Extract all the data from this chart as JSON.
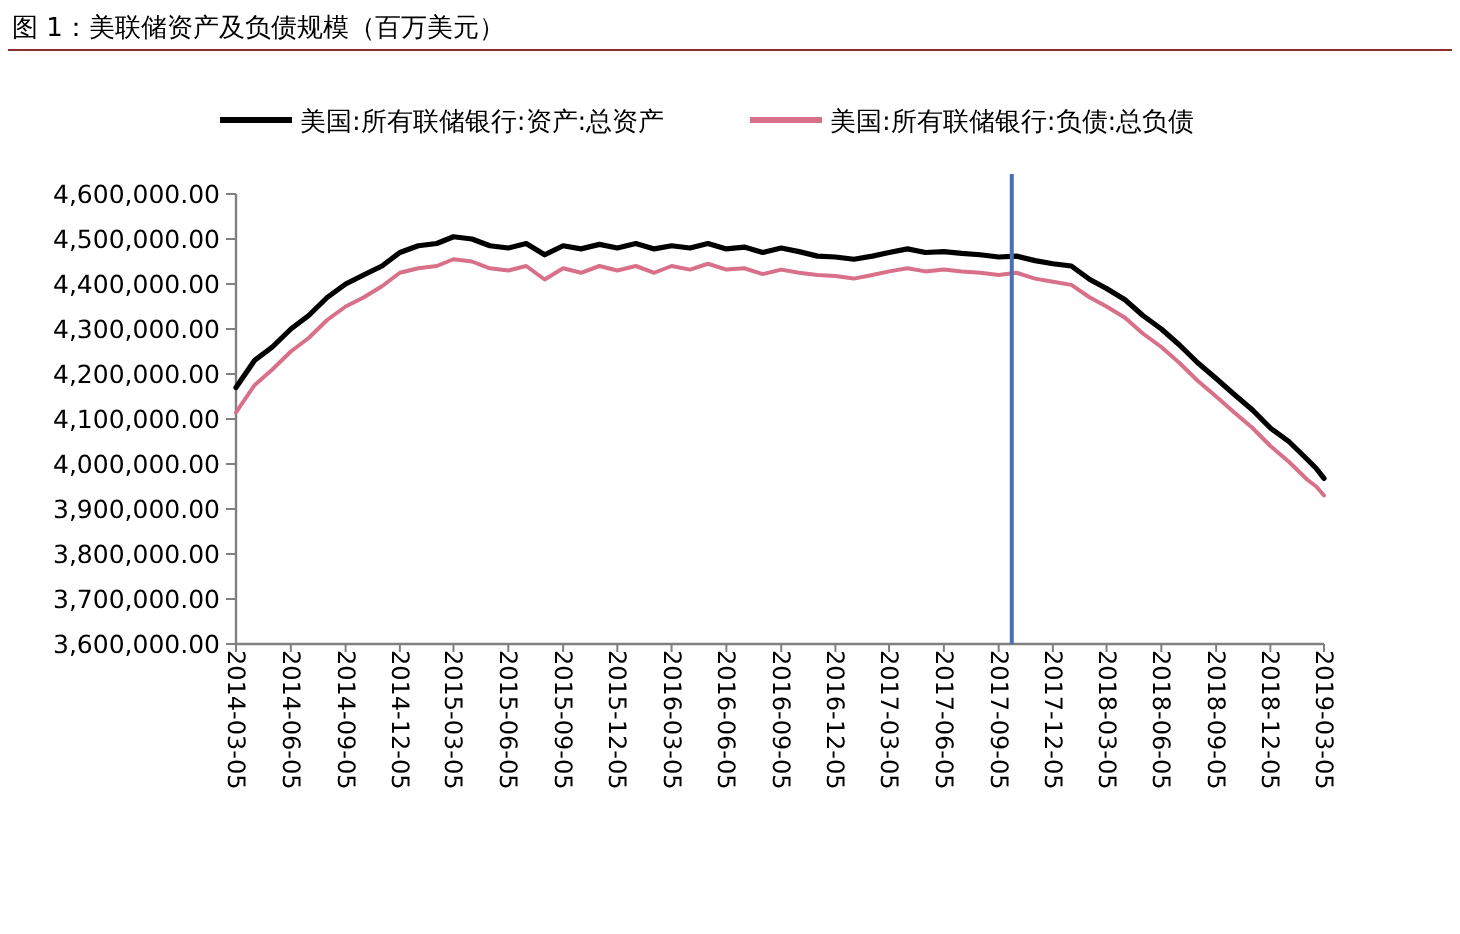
{
  "chart_data": {
    "type": "line",
    "title": "图 1：美联储资产及负债规模（百万美元）",
    "legend": "top",
    "marker": "none",
    "line_style": "solid",
    "grid": false,
    "x": [
      "2014-03-05",
      "2014-04-05",
      "2014-05-05",
      "2014-06-05",
      "2014-07-05",
      "2014-08-05",
      "2014-09-05",
      "2014-10-05",
      "2014-11-05",
      "2014-12-05",
      "2015-01-05",
      "2015-02-05",
      "2015-03-05",
      "2015-04-05",
      "2015-05-05",
      "2015-06-05",
      "2015-07-05",
      "2015-08-05",
      "2015-09-05",
      "2015-10-05",
      "2015-11-05",
      "2015-12-05",
      "2016-01-05",
      "2016-02-05",
      "2016-03-05",
      "2016-04-05",
      "2016-05-05",
      "2016-06-05",
      "2016-07-05",
      "2016-08-05",
      "2016-09-05",
      "2016-10-05",
      "2016-11-05",
      "2016-12-05",
      "2017-01-05",
      "2017-02-05",
      "2017-03-05",
      "2017-04-05",
      "2017-05-05",
      "2017-06-05",
      "2017-07-05",
      "2017-08-05",
      "2017-09-05",
      "2017-10-05",
      "2017-11-05",
      "2017-12-05",
      "2018-01-05",
      "2018-02-05",
      "2018-03-05",
      "2018-04-05",
      "2018-05-05",
      "2018-06-05",
      "2018-07-05",
      "2018-08-05",
      "2018-09-05",
      "2018-10-05",
      "2018-11-05",
      "2018-12-05",
      "2019-01-05",
      "2019-02-05",
      "2019-02-20",
      "2019-03-05"
    ],
    "series": [
      {
        "name": "美国:所有联储银行:资产:总资产",
        "color": "#000000",
        "values": [
          4170000,
          4230000,
          4260000,
          4300000,
          4330000,
          4370000,
          4400000,
          4420000,
          4440000,
          4470000,
          4485000,
          4490000,
          4505000,
          4500000,
          4485000,
          4480000,
          4490000,
          4465000,
          4485000,
          4478000,
          4488000,
          4480000,
          4490000,
          4478000,
          4485000,
          4480000,
          4490000,
          4478000,
          4482000,
          4470000,
          4480000,
          4472000,
          4462000,
          4460000,
          4455000,
          4462000,
          4470000,
          4478000,
          4470000,
          4472000,
          4468000,
          4465000,
          4460000,
          4462000,
          4452000,
          4445000,
          4440000,
          4410000,
          4390000,
          4365000,
          4330000,
          4300000,
          4265000,
          4225000,
          4190000,
          4155000,
          4120000,
          4080000,
          4050000,
          4010000,
          3990000,
          3968000
        ]
      },
      {
        "name": "美国:所有联储银行:负债:总负债",
        "color": "#d9708a",
        "values": [
          4115000,
          4175000,
          4210000,
          4250000,
          4280000,
          4320000,
          4350000,
          4370000,
          4395000,
          4425000,
          4435000,
          4440000,
          4455000,
          4450000,
          4435000,
          4430000,
          4440000,
          4410000,
          4435000,
          4425000,
          4440000,
          4430000,
          4440000,
          4425000,
          4440000,
          4432000,
          4445000,
          4432000,
          4435000,
          4422000,
          4432000,
          4425000,
          4420000,
          4418000,
          4412000,
          4420000,
          4428000,
          4435000,
          4428000,
          4432000,
          4428000,
          4425000,
          4420000,
          4425000,
          4412000,
          4405000,
          4398000,
          4370000,
          4350000,
          4325000,
          4290000,
          4260000,
          4225000,
          4185000,
          4150000,
          4115000,
          4080000,
          4040000,
          4005000,
          3965000,
          3950000,
          3930000
        ]
      }
    ],
    "xlim": [
      "2014-03-05",
      "2019-03-05"
    ],
    "xticks": [
      "2014-03-05",
      "2014-06-05",
      "2014-09-05",
      "2014-12-05",
      "2015-03-05",
      "2015-06-05",
      "2015-09-05",
      "2015-12-05",
      "2016-03-05",
      "2016-06-05",
      "2016-09-05",
      "2016-12-05",
      "2017-03-05",
      "2017-06-05",
      "2017-09-05",
      "2017-12-05",
      "2018-03-05",
      "2018-06-05",
      "2018-09-05",
      "2018-12-05",
      "2019-03-05"
    ],
    "ylim": [
      3600000,
      4600000
    ],
    "yticks": [
      {
        "value": 3600000,
        "label": "3,600,000.00"
      },
      {
        "value": 3700000,
        "label": "3,700,000.00"
      },
      {
        "value": 3800000,
        "label": "3,800,000.00"
      },
      {
        "value": 3900000,
        "label": "3,900,000.00"
      },
      {
        "value": 4000000,
        "label": "4,000,000.00"
      },
      {
        "value": 4100000,
        "label": "4,100,000.00"
      },
      {
        "value": 4200000,
        "label": "4,200,000.00"
      },
      {
        "value": 4300000,
        "label": "4,300,000.00"
      },
      {
        "value": 4400000,
        "label": "4,400,000.00"
      },
      {
        "value": 4500000,
        "label": "4,500,000.00"
      },
      {
        "value": 4600000,
        "label": "4,600,000.00"
      }
    ],
    "ref_lines": [
      {
        "axis": "x",
        "value": "2017-09-27",
        "color": "#4a6fb5"
      }
    ]
  }
}
